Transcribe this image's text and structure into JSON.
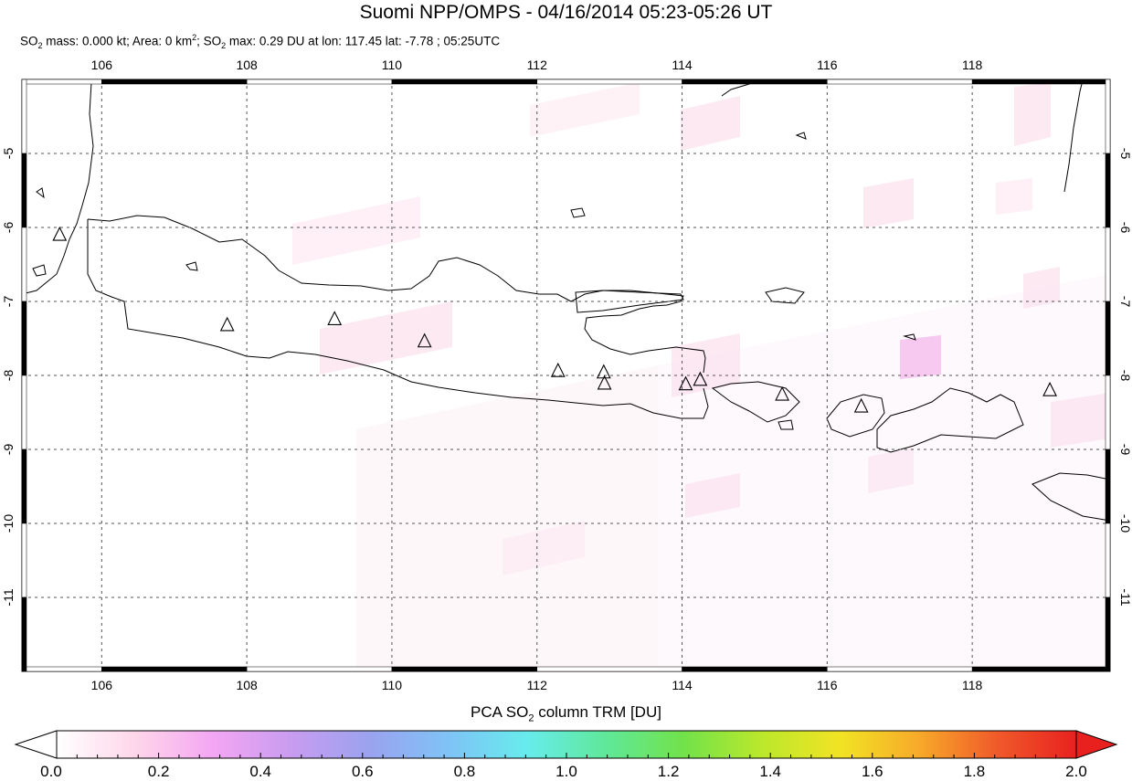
{
  "title": "Suomi NPP/OMPS - 04/16/2014 05:23-05:26 UT",
  "subtitle": {
    "p1": "SO",
    "p2": " mass: 0.000 kt; Area: 0 km",
    "p3": "; SO",
    "p4": " max: 0.29 DU at lon: 117.45 lat: -7.78 ; 05:25UTC",
    "sub2": "2",
    "sup2": "2"
  },
  "map": {
    "lon_range": [
      104.9,
      119.9
    ],
    "lat_range": [
      -12.0,
      -4.0
    ],
    "lon_ticks": [
      "106",
      "108",
      "110",
      "112",
      "114",
      "116",
      "118"
    ],
    "lat_ticks": [
      "-5",
      "-6",
      "-7",
      "-8",
      "-9",
      "-10",
      "-11"
    ],
    "grid": true,
    "volcano_marker": "triangle-icon",
    "volcanoes": [
      {
        "lon": 105.42,
        "lat": -6.1
      },
      {
        "lon": 107.73,
        "lat": -7.32
      },
      {
        "lon": 109.21,
        "lat": -7.24
      },
      {
        "lon": 110.45,
        "lat": -7.54
      },
      {
        "lon": 112.29,
        "lat": -7.94
      },
      {
        "lon": 112.92,
        "lat": -7.96
      },
      {
        "lon": 112.93,
        "lat": -8.11
      },
      {
        "lon": 114.05,
        "lat": -8.12
      },
      {
        "lon": 114.25,
        "lat": -8.06
      },
      {
        "lon": 115.38,
        "lat": -8.26
      },
      {
        "lon": 116.47,
        "lat": -8.42
      },
      {
        "lon": 119.07,
        "lat": -8.2
      }
    ],
    "so2_max_pixel": {
      "lon": 117.45,
      "lat": -7.78,
      "value": 0.29
    }
  },
  "colorbar": {
    "title_a": "PCA SO",
    "title_sub": "2",
    "title_b": " column TRM [DU]",
    "ticks": [
      "0.0",
      "0.2",
      "0.4",
      "0.6",
      "0.8",
      "1.0",
      "1.2",
      "1.4",
      "1.6",
      "1.8",
      "2.0"
    ],
    "min": 0.0,
    "max": 2.0,
    "colors": [
      "#ffffff",
      "#ffd6ea",
      "#f3a6f3",
      "#c89cf0",
      "#9aa3ef",
      "#7fc3f6",
      "#67ecec",
      "#5fe89a",
      "#72e24a",
      "#bce82b",
      "#f2e324",
      "#f7a92a",
      "#f0592a",
      "#e8211f"
    ]
  }
}
